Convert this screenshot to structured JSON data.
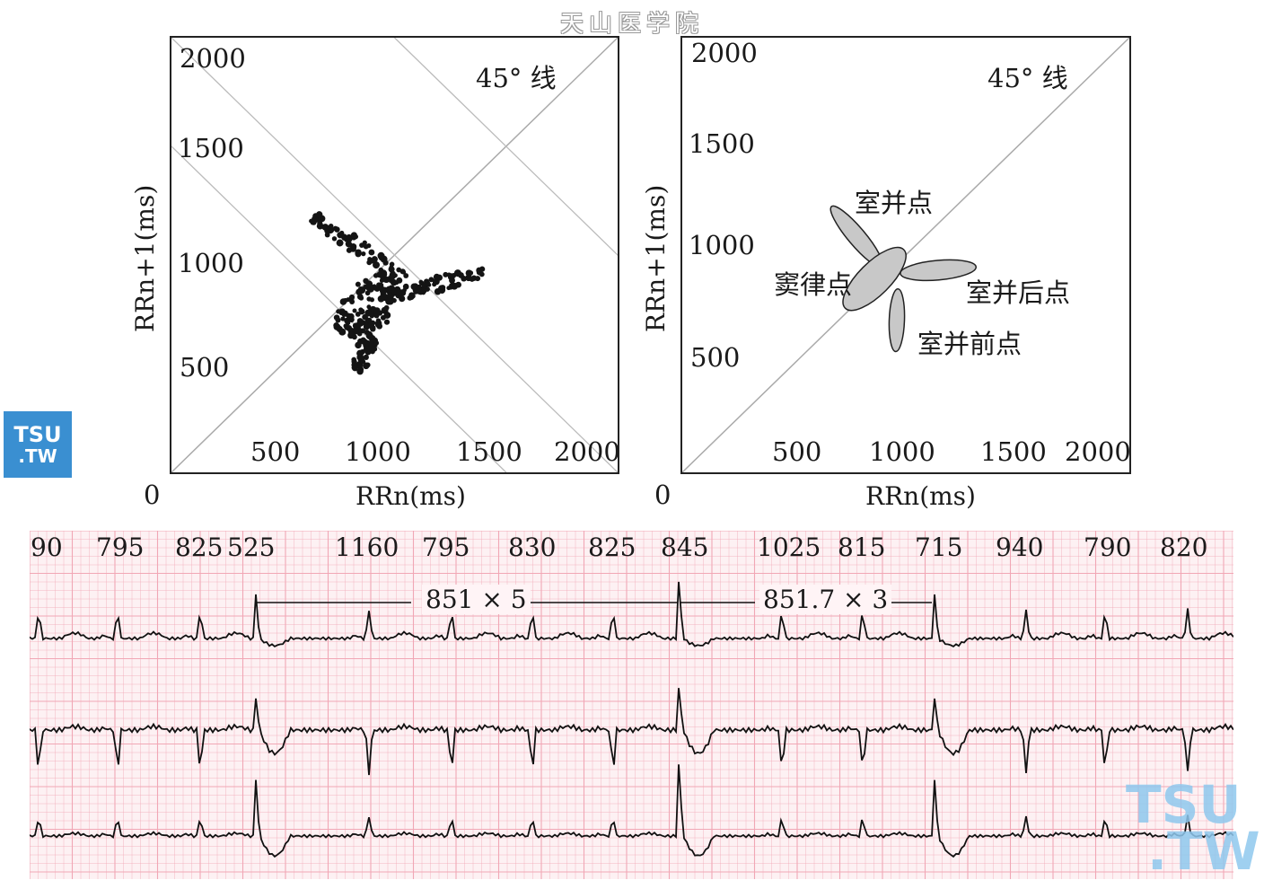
{
  "header": {
    "title": "天山医学院"
  },
  "watermarks": {
    "small_line1": "TSU",
    "small_line2": ".TW",
    "big_line1": "TSU",
    "big_line2": ".TW",
    "color": "#3a8fd1"
  },
  "chart_data": [
    {
      "type": "scatter",
      "xlabel": "RRn(ms)",
      "ylabel": "RRn+1(ms)",
      "origin_label": "0",
      "xlim": [
        0,
        2000
      ],
      "ylim": [
        0,
        2000
      ],
      "x_ticks": [
        "500",
        "1000",
        "1500",
        "2000"
      ],
      "y_ticks": [
        "500",
        "1000",
        "1500",
        "2000"
      ],
      "line_label": "45° 线",
      "clusters": [
        {
          "cx": 830,
          "cy": 1040,
          "rx": 260,
          "ry": 45,
          "angle_deg": 145,
          "count": 70
        },
        {
          "cx": 1170,
          "cy": 860,
          "rx": 240,
          "ry": 40,
          "angle_deg": 15,
          "count": 80
        },
        {
          "cx": 880,
          "cy": 770,
          "rx": 170,
          "ry": 120,
          "angle_deg": 45,
          "count": 120
        },
        {
          "cx": 870,
          "cy": 610,
          "rx": 150,
          "ry": 55,
          "angle_deg": 80,
          "count": 60
        }
      ]
    },
    {
      "type": "scatter",
      "xlabel": "RRn(ms)",
      "ylabel": "RRn+1(ms)",
      "origin_label": "0",
      "xlim": [
        0,
        2000
      ],
      "ylim": [
        0,
        2000
      ],
      "x_ticks": [
        "500",
        "1000",
        "1500",
        "2000"
      ],
      "y_ticks": [
        "500",
        "1000",
        "1500",
        "2000"
      ],
      "line_label": "45° 线",
      "regions": [
        {
          "label": "室并点",
          "cx": 780,
          "cy": 1085,
          "rx": 175,
          "ry": 40,
          "angle_deg": 130
        },
        {
          "label": "窦律点",
          "cx": 860,
          "cy": 890,
          "rx": 185,
          "ry": 75,
          "angle_deg": 45
        },
        {
          "label": "室并后点",
          "cx": 1145,
          "cy": 930,
          "rx": 170,
          "ry": 45,
          "angle_deg": 5
        },
        {
          "label": "室并前点",
          "cx": 960,
          "cy": 700,
          "rx": 140,
          "ry": 35,
          "angle_deg": 88
        }
      ]
    },
    {
      "type": "line",
      "title": "",
      "rr_intervals": [
        "90",
        "795",
        "825",
        "525",
        "1160",
        "795",
        "830",
        "825",
        "845",
        "1025",
        "815",
        "715",
        "940",
        "790",
        "820"
      ],
      "annotations": [
        "851 × 5",
        "851.7 × 3"
      ],
      "grid_color": "#f1a7b5",
      "trace_color": "#111111"
    }
  ]
}
